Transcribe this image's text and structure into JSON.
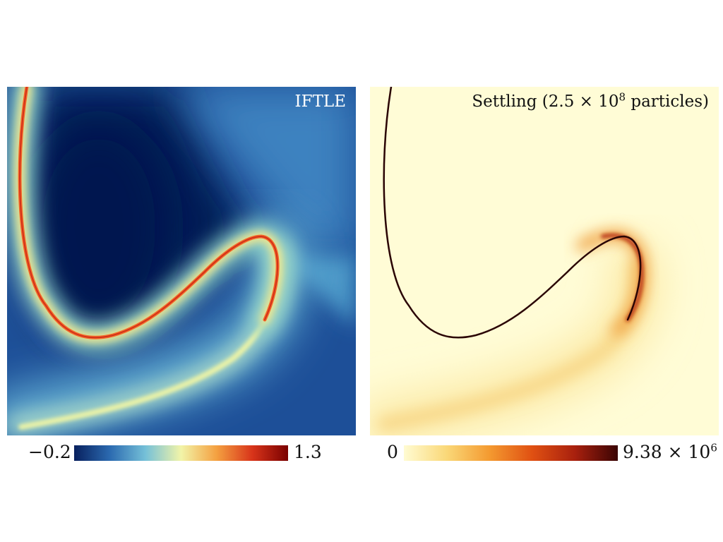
{
  "panels": {
    "left": {
      "title": "IFTLE"
    },
    "right": {
      "title_prefix": "Settling (2.5 × 10",
      "title_exp": "8",
      "title_suffix": " particles)"
    }
  },
  "colorbars": {
    "left": {
      "min_label": "−0.2",
      "max_label": "1.3",
      "colors": [
        "#08205e",
        "#2b6ab0",
        "#75c0d8",
        "#f2f4a8",
        "#f4a040",
        "#d8341a",
        "#7a0000"
      ]
    },
    "right": {
      "min_label": "0",
      "max_mantissa": "9.38 × 10",
      "max_exp": "6",
      "colors": [
        "#fffbd2",
        "#fad878",
        "#f49a30",
        "#e05012",
        "#a8200e",
        "#3a0404"
      ]
    }
  }
}
